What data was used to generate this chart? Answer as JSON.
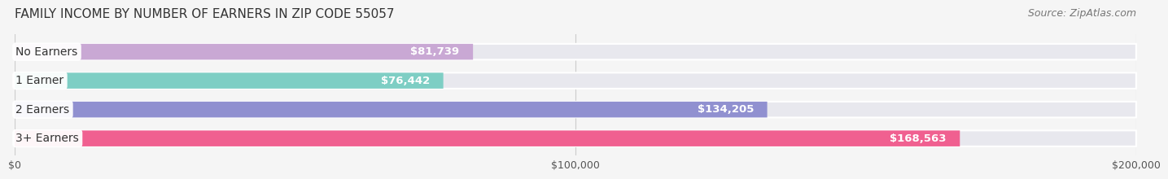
{
  "title": "FAMILY INCOME BY NUMBER OF EARNERS IN ZIP CODE 55057",
  "source": "Source: ZipAtlas.com",
  "categories": [
    "No Earners",
    "1 Earner",
    "2 Earners",
    "3+ Earners"
  ],
  "values": [
    81739,
    76442,
    134205,
    168563
  ],
  "value_labels": [
    "$81,739",
    "$76,442",
    "$134,205",
    "$168,563"
  ],
  "bar_colors": [
    "#c9a8d4",
    "#7ecec4",
    "#9090d0",
    "#f06090"
  ],
  "bar_bg_color": "#e8e8ee",
  "xlim": [
    0,
    200000
  ],
  "xtick_labels": [
    "$0",
    "$100,000",
    "$200,000"
  ],
  "xtick_values": [
    0,
    100000,
    200000
  ],
  "title_fontsize": 11,
  "source_fontsize": 9,
  "label_fontsize": 10,
  "value_fontsize": 9.5,
  "background_color": "#f5f5f5",
  "bar_height": 0.55,
  "label_bg_color": "#ffffff"
}
